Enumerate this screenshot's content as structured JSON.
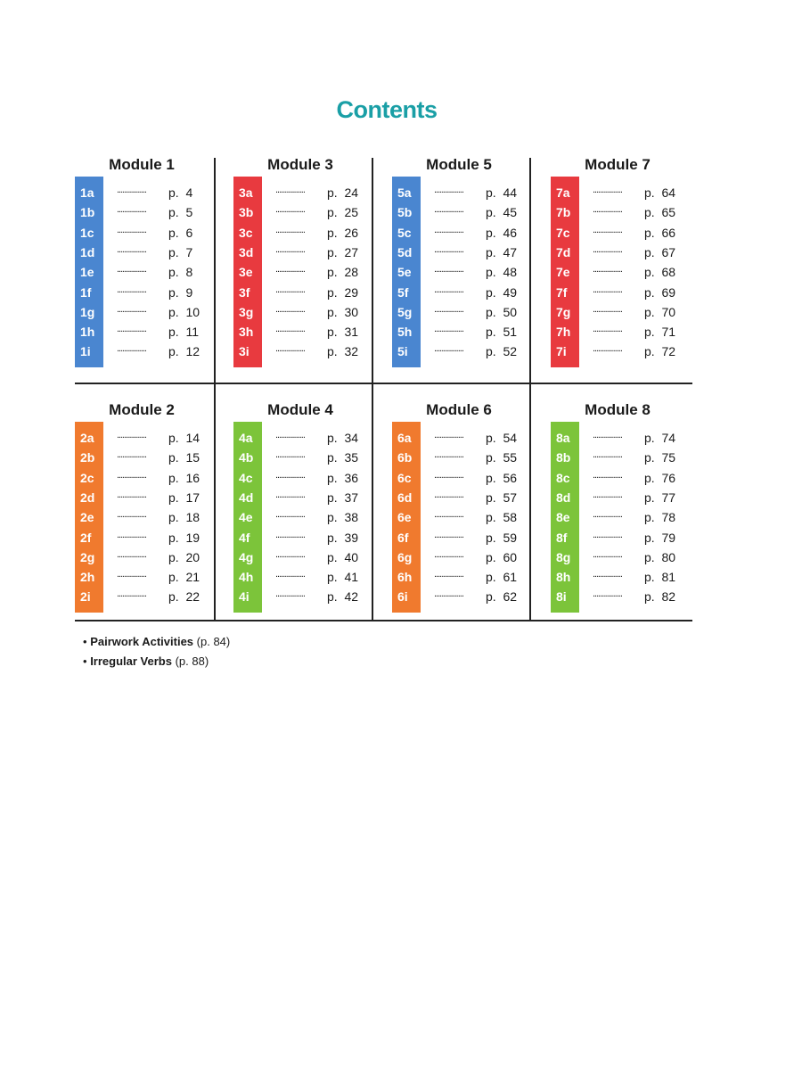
{
  "title": "Contents",
  "colors": {
    "title": "#1a9fa6",
    "blue": "#4a86d0",
    "red": "#e83a3f",
    "orange": "#f07a2e",
    "green": "#7cc43a"
  },
  "modules": [
    {
      "name": "Module 1",
      "color": "#4a86d0",
      "rows": [
        {
          "code": "1a",
          "page": "p.  4"
        },
        {
          "code": "1b",
          "page": "p.  5"
        },
        {
          "code": "1c",
          "page": "p.  6"
        },
        {
          "code": "1d",
          "page": "p.  7"
        },
        {
          "code": "1e",
          "page": "p.  8"
        },
        {
          "code": "1f",
          "page": "p.  9"
        },
        {
          "code": "1g",
          "page": "p.  10"
        },
        {
          "code": "1h",
          "page": "p.  11"
        },
        {
          "code": "1i",
          "page": "p.  12"
        }
      ]
    },
    {
      "name": "Module 3",
      "color": "#e83a3f",
      "rows": [
        {
          "code": "3a",
          "page": "p.  24"
        },
        {
          "code": "3b",
          "page": "p.  25"
        },
        {
          "code": "3c",
          "page": "p.  26"
        },
        {
          "code": "3d",
          "page": "p.  27"
        },
        {
          "code": "3e",
          "page": "p.  28"
        },
        {
          "code": "3f",
          "page": "p.  29"
        },
        {
          "code": "3g",
          "page": "p.  30"
        },
        {
          "code": "3h",
          "page": "p.  31"
        },
        {
          "code": "3i",
          "page": "p.  32"
        }
      ]
    },
    {
      "name": "Module 5",
      "color": "#4a86d0",
      "rows": [
        {
          "code": "5a",
          "page": "p.  44"
        },
        {
          "code": "5b",
          "page": "p.  45"
        },
        {
          "code": "5c",
          "page": "p.  46"
        },
        {
          "code": "5d",
          "page": "p.  47"
        },
        {
          "code": "5e",
          "page": "p.  48"
        },
        {
          "code": "5f",
          "page": "p.  49"
        },
        {
          "code": "5g",
          "page": "p.  50"
        },
        {
          "code": "5h",
          "page": "p.  51"
        },
        {
          "code": "5i",
          "page": "p.  52"
        }
      ]
    },
    {
      "name": "Module 7",
      "color": "#e83a3f",
      "rows": [
        {
          "code": "7a",
          "page": "p.  64"
        },
        {
          "code": "7b",
          "page": "p.  65"
        },
        {
          "code": "7c",
          "page": "p.  66"
        },
        {
          "code": "7d",
          "page": "p.  67"
        },
        {
          "code": "7e",
          "page": "p.  68"
        },
        {
          "code": "7f",
          "page": "p.  69"
        },
        {
          "code": "7g",
          "page": "p.  70"
        },
        {
          "code": "7h",
          "page": "p.  71"
        },
        {
          "code": "7i",
          "page": "p.  72"
        }
      ]
    },
    {
      "name": "Module 2",
      "color": "#f07a2e",
      "rows": [
        {
          "code": "2a",
          "page": "p.  14"
        },
        {
          "code": "2b",
          "page": "p.  15"
        },
        {
          "code": "2c",
          "page": "p.  16"
        },
        {
          "code": "2d",
          "page": "p.  17"
        },
        {
          "code": "2e",
          "page": "p.  18"
        },
        {
          "code": "2f",
          "page": "p.  19"
        },
        {
          "code": "2g",
          "page": "p.  20"
        },
        {
          "code": "2h",
          "page": "p.  21"
        },
        {
          "code": "2i",
          "page": "p.  22"
        }
      ]
    },
    {
      "name": "Module 4",
      "color": "#7cc43a",
      "rows": [
        {
          "code": "4a",
          "page": "p.  34"
        },
        {
          "code": "4b",
          "page": "p.  35"
        },
        {
          "code": "4c",
          "page": "p.  36"
        },
        {
          "code": "4d",
          "page": "p.  37"
        },
        {
          "code": "4e",
          "page": "p.  38"
        },
        {
          "code": "4f",
          "page": "p.  39"
        },
        {
          "code": "4g",
          "page": "p.  40"
        },
        {
          "code": "4h",
          "page": "p.  41"
        },
        {
          "code": "4i",
          "page": "p.  42"
        }
      ]
    },
    {
      "name": "Module 6",
      "color": "#f07a2e",
      "rows": [
        {
          "code": "6a",
          "page": "p.  54"
        },
        {
          "code": "6b",
          "page": "p.  55"
        },
        {
          "code": "6c",
          "page": "p.  56"
        },
        {
          "code": "6d",
          "page": "p.  57"
        },
        {
          "code": "6e",
          "page": "p.  58"
        },
        {
          "code": "6f",
          "page": "p.  59"
        },
        {
          "code": "6g",
          "page": "p.  60"
        },
        {
          "code": "6h",
          "page": "p.  61"
        },
        {
          "code": "6i",
          "page": "p.  62"
        }
      ]
    },
    {
      "name": "Module 8",
      "color": "#7cc43a",
      "rows": [
        {
          "code": "8a",
          "page": "p.  74"
        },
        {
          "code": "8b",
          "page": "p.  75"
        },
        {
          "code": "8c",
          "page": "p.  76"
        },
        {
          "code": "8d",
          "page": "p.  77"
        },
        {
          "code": "8e",
          "page": "p.  78"
        },
        {
          "code": "8f",
          "page": "p.  79"
        },
        {
          "code": "8g",
          "page": "p.  80"
        },
        {
          "code": "8h",
          "page": "p.  81"
        },
        {
          "code": "8i",
          "page": "p.  82"
        }
      ]
    }
  ],
  "dots": "................",
  "extras": [
    {
      "bullet": "•",
      "label": "Pairwork Activities",
      "page": "(p. 84)"
    },
    {
      "bullet": "•",
      "label": "Irregular Verbs",
      "page": "(p. 88)"
    }
  ]
}
